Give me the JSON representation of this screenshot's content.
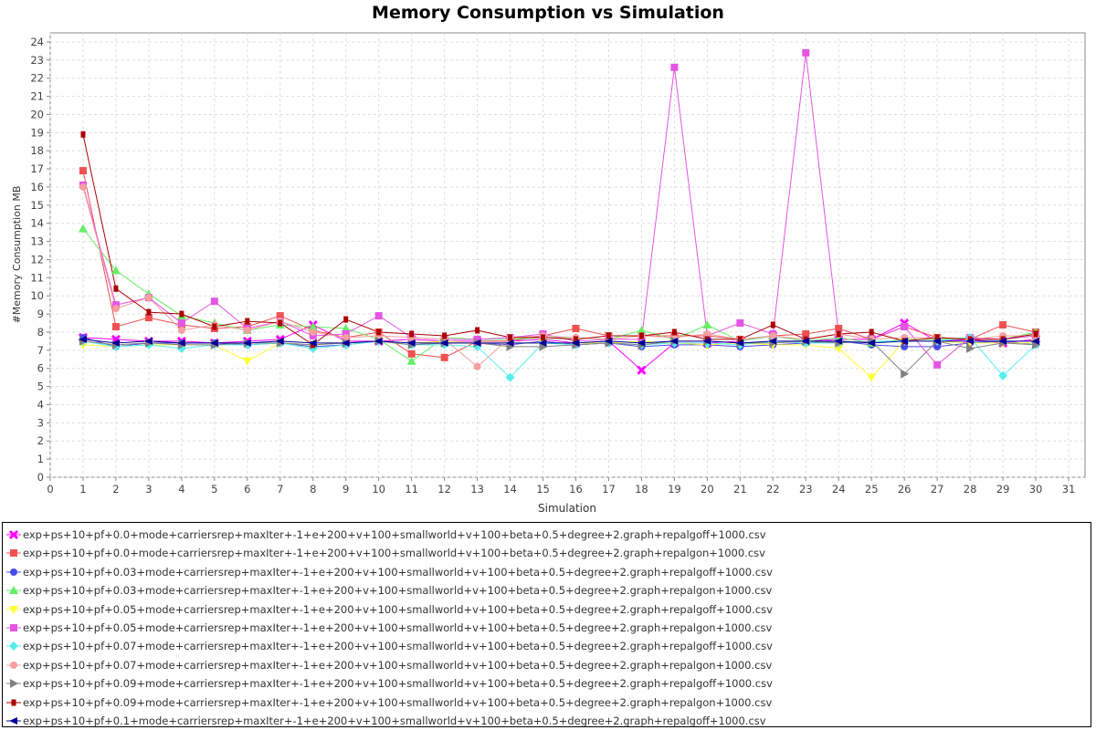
{
  "chart_data": {
    "type": "line",
    "title": "Memory Consumption vs Simulation",
    "xlabel": "Simulation",
    "ylabel": "#Memory Consumption MB",
    "xlim": [
      0,
      31
    ],
    "ylim": [
      0,
      24.5
    ],
    "x_ticks": [
      0,
      1,
      2,
      3,
      4,
      5,
      6,
      7,
      8,
      9,
      10,
      11,
      12,
      13,
      14,
      15,
      16,
      17,
      18,
      19,
      20,
      21,
      22,
      23,
      24,
      25,
      26,
      27,
      28,
      29,
      30,
      31
    ],
    "y_ticks": [
      0,
      1,
      2,
      3,
      4,
      5,
      6,
      7,
      8,
      9,
      10,
      11,
      12,
      13,
      14,
      15,
      16,
      17,
      18,
      19,
      20,
      21,
      22,
      23,
      24
    ],
    "grid": true,
    "legend_position": "bottom",
    "x": [
      1,
      2,
      3,
      4,
      5,
      6,
      7,
      8,
      9,
      10,
      11,
      12,
      13,
      14,
      15,
      16,
      17,
      18,
      19,
      20,
      21,
      22,
      23,
      24,
      25,
      26,
      27,
      28,
      29,
      30
    ],
    "series": [
      {
        "name": "exp+ps+10+pf+0.0+mode+carriersrep+maxIter+-1+e+200+v+100+smallworld+v+100+beta+0.5+degree+2.graph+repalgoff+1000.csv",
        "color": "#ff00ff",
        "marker": "x",
        "values": [
          7.7,
          7.6,
          7.5,
          7.5,
          7.4,
          7.5,
          7.6,
          8.4,
          7.5,
          7.5,
          7.6,
          7.5,
          7.5,
          7.5,
          7.6,
          7.4,
          7.5,
          5.9,
          7.4,
          7.4,
          7.5,
          7.8,
          7.5,
          7.6,
          7.6,
          8.5,
          7.5,
          7.6,
          7.4,
          7.6
        ]
      },
      {
        "name": "exp+ps+10+pf+0.0+mode+carriersrep+maxIter+-1+e+200+v+100+smallworld+v+100+beta+0.5+degree+2.graph+repalgon+1000.csv",
        "color": "#f05050",
        "marker": "square",
        "values": [
          16.9,
          8.3,
          8.8,
          8.4,
          8.2,
          8.3,
          8.9,
          8.1,
          7.7,
          8.0,
          6.8,
          6.6,
          7.5,
          7.5,
          7.8,
          8.2,
          7.8,
          7.8,
          7.8,
          7.8,
          7.6,
          7.8,
          7.9,
          8.2,
          7.6,
          8.3,
          7.7,
          7.6,
          8.4,
          8.0
        ]
      },
      {
        "name": "exp+ps+10+pf+0.03+mode+carriersrep+maxIter+-1+e+200+v+100+smallworld+v+100+beta+0.5+degree+2.graph+repalgoff+1000.csv",
        "color": "#4a4ae8",
        "marker": "circle",
        "values": [
          7.7,
          7.2,
          7.4,
          7.4,
          7.4,
          7.3,
          7.4,
          7.2,
          7.3,
          7.5,
          7.3,
          7.4,
          7.4,
          7.3,
          7.5,
          7.3,
          7.4,
          7.2,
          7.3,
          7.3,
          7.2,
          7.3,
          7.4,
          7.5,
          7.3,
          7.2,
          7.2,
          7.4,
          7.5,
          7.3
        ]
      },
      {
        "name": "exp+ps+10+pf+0.03+mode+carriersrep+maxIter+-1+e+200+v+100+smallworld+v+100+beta+0.5+degree+2.graph+repalgon+1000.csv",
        "color": "#66ee66",
        "marker": "triangle-up",
        "values": [
          13.7,
          11.4,
          10.1,
          8.9,
          8.5,
          8.1,
          8.4,
          8.3,
          8.2,
          7.6,
          6.4,
          7.7,
          7.6,
          7.6,
          7.7,
          7.7,
          7.6,
          8.1,
          7.6,
          8.4,
          7.5,
          7.8,
          7.5,
          7.7,
          7.4,
          7.6,
          7.6,
          7.7,
          7.6,
          8.0
        ]
      },
      {
        "name": "exp+ps+10+pf+0.05+mode+carriersrep+maxIter+-1+e+200+v+100+smallworld+v+100+beta+0.5+degree+2.graph+repalgoff+1000.csv",
        "color": "#ffff33",
        "marker": "triangle-down",
        "values": [
          7.3,
          7.2,
          7.3,
          7.3,
          7.3,
          6.4,
          7.4,
          7.3,
          7.4,
          7.5,
          7.4,
          7.5,
          7.4,
          7.4,
          7.4,
          7.4,
          7.4,
          7.5,
          7.4,
          7.3,
          7.4,
          7.3,
          7.3,
          7.1,
          5.5,
          7.5,
          7.5,
          7.4,
          7.4,
          7.4
        ]
      },
      {
        "name": "exp+ps+10+pf+0.05+mode+carriersrep+maxIter+-1+e+200+v+100+smallworld+v+100+beta+0.5+degree+2.graph+repalgon+1000.csv",
        "color": "#e455e4",
        "marker": "square",
        "values": [
          16.1,
          9.5,
          9.9,
          8.5,
          9.7,
          8.2,
          8.6,
          7.8,
          7.9,
          8.9,
          7.7,
          7.6,
          7.6,
          7.7,
          7.9,
          7.5,
          7.6,
          7.6,
          22.6,
          7.8,
          8.5,
          7.9,
          23.4,
          7.9,
          7.6,
          8.3,
          6.2,
          7.7,
          7.6,
          7.8
        ]
      },
      {
        "name": "exp+ps+10+pf+0.07+mode+carriersrep+maxIter+-1+e+200+v+100+smallworld+v+100+beta+0.5+degree+2.graph+repalgoff+1000.csv",
        "color": "#55eeee",
        "marker": "diamond",
        "values": [
          7.5,
          7.2,
          7.3,
          7.1,
          7.3,
          7.3,
          7.4,
          7.1,
          7.3,
          7.5,
          7.3,
          7.3,
          7.2,
          5.5,
          7.4,
          7.3,
          7.4,
          7.3,
          7.4,
          7.4,
          7.3,
          7.5,
          7.4,
          7.4,
          7.5,
          7.5,
          7.5,
          7.7,
          5.6,
          7.3
        ]
      },
      {
        "name": "exp+ps+10+pf+0.07+mode+carriersrep+maxIter+-1+e+200+v+100+smallworld+v+100+beta+0.5+degree+2.graph+repalgon+1000.csv",
        "color": "#f4a0a0",
        "marker": "circle",
        "values": [
          16.0,
          9.3,
          9.9,
          8.1,
          8.4,
          8.1,
          8.6,
          8.0,
          7.7,
          7.8,
          7.7,
          7.6,
          6.1,
          7.7,
          7.8,
          7.7,
          7.6,
          7.8,
          7.7,
          7.9,
          7.6,
          7.8,
          7.6,
          7.9,
          7.6,
          7.7,
          7.7,
          7.6,
          7.8,
          7.8
        ]
      },
      {
        "name": "exp+ps+10+pf+0.09+mode+carriersrep+maxIter+-1+e+200+v+100+smallworld+v+100+beta+0.5+degree+2.graph+repalgoff+1000.csv",
        "color": "#808080",
        "marker": "triangle-right",
        "values": [
          7.5,
          7.3,
          7.4,
          7.3,
          7.3,
          7.4,
          7.4,
          7.3,
          7.4,
          7.5,
          7.3,
          7.4,
          7.4,
          7.2,
          7.2,
          7.3,
          7.4,
          7.3,
          7.5,
          7.5,
          7.4,
          7.4,
          7.5,
          7.4,
          7.5,
          5.7,
          7.5,
          7.1,
          7.4,
          7.3
        ]
      },
      {
        "name": "exp+ps+10+pf+0.09+mode+carriersrep+maxIter+-1+e+200+v+100+smallworld+v+100+beta+0.5+degree+2.graph+repalgon+1000.csv",
        "color": "#aa0000",
        "marker": "small-square",
        "values": [
          18.9,
          10.4,
          9.1,
          9.0,
          8.3,
          8.6,
          8.5,
          7.3,
          8.7,
          8.0,
          7.9,
          7.8,
          8.1,
          7.7,
          7.7,
          7.6,
          7.8,
          7.8,
          8.0,
          7.6,
          7.6,
          8.4,
          7.6,
          7.9,
          8.0,
          7.5,
          7.7,
          7.6,
          7.6,
          7.9
        ]
      },
      {
        "name": "exp+ps+10+pf+0.1+mode+carriersrep+maxIter+-1+e+200+v+100+smallworld+v+100+beta+0.5+degree+2.graph+repalgoff+1000.csv",
        "color": "#000099",
        "marker": "triangle-left",
        "values": [
          7.6,
          7.4,
          7.5,
          7.4,
          7.4,
          7.4,
          7.5,
          7.4,
          7.4,
          7.5,
          7.4,
          7.4,
          7.4,
          7.4,
          7.4,
          7.4,
          7.5,
          7.4,
          7.5,
          7.5,
          7.4,
          7.5,
          7.5,
          7.5,
          7.4,
          7.5,
          7.5,
          7.5,
          7.5,
          7.5
        ]
      }
    ]
  }
}
